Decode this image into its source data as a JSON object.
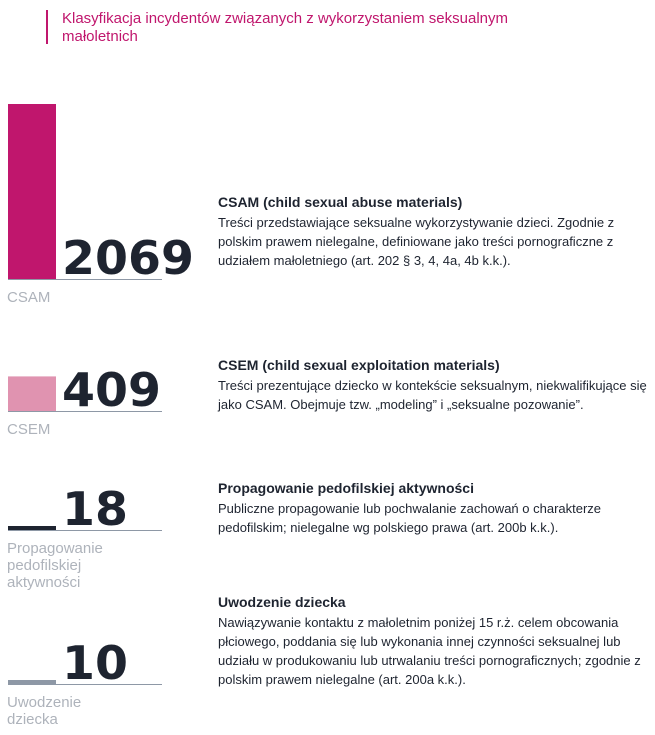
{
  "header": {
    "title": "Klasyfikacja incydentów związanych z wykorzystaniem seksualnym małoletnich"
  },
  "colors": {
    "accent": "#c0166d",
    "muted": "#e093b0",
    "dark": "#1e2430",
    "label": "#aeb3bb",
    "rule": "#8e98a6"
  },
  "chart_data": {
    "type": "bar",
    "categories": [
      "CSAM",
      "CSEM",
      "Propagowanie pedofilskiej aktywności",
      "Uwodzenie dziecka"
    ],
    "category_labels": [
      "CSAM",
      "CSEM",
      "Propagowanie\npedofilskiej\naktywności",
      "Uwodzenie\ndziecka"
    ],
    "values": [
      2069,
      409,
      18,
      10
    ],
    "value_labels": [
      "2069",
      "409",
      "18",
      "10"
    ],
    "bar_colors": [
      "#c0166d",
      "#e093b0",
      "#1e2430",
      "#8e98a6"
    ]
  },
  "descriptions": [
    {
      "title": "CSAM (child sexual abuse materials)",
      "text": "Treści przedstawiające seksualne wykorzystywanie dzieci. Zgodnie z polskim prawem nielegalne, definiowane jako treści pornograficzne z udziałem małoletniego (art. 202 § 3, 4, 4a, 4b k.k.)."
    },
    {
      "title": "CSEM (child sexual exploitation materials)",
      "text": "Treści prezentujące dziecko w kontekście seksualnym, niekwalifikujące się jako CSAM. Obejmuje tzw. „modeling” i „seksualne pozowanie”."
    },
    {
      "title": "Propagowanie pedofilskiej aktywności",
      "text": "Publiczne propagowanie lub pochwalanie zachowań o charakterze pedofilskim; nielegalne wg polskiego prawa (art. 200b k.k.)."
    },
    {
      "title": "Uwodzenie dziecka",
      "text": "Nawiązywanie kontaktu z małoletnim poniżej 15 r.ż. celem obcowania płciowego, poddania się lub wykonania innej czynności seksualnej lub udziału w produkowaniu lub utrwalaniu treści pornograficznych; zgodnie z polskim prawem nielegalne (art. 200a k.k.)."
    }
  ]
}
